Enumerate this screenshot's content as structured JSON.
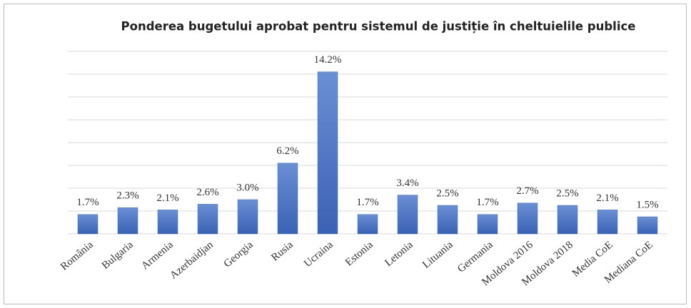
{
  "chart_data": {
    "type": "bar",
    "title": "Ponderea bugetului aprobat pentru sistemul de justiție în cheltuielile publice",
    "categories": [
      "România",
      "Bulgaria",
      "Armenia",
      "Azerbaidjan",
      "Georgia",
      "Rusia",
      "Ucraina",
      "Estonia",
      "Letonia",
      "Lituania",
      "Germania",
      "Moldova 2016",
      "Moldova 2018",
      "Media CoE",
      "Mediana CoE"
    ],
    "values": [
      1.7,
      2.3,
      2.1,
      2.6,
      3.0,
      6.2,
      14.2,
      1.7,
      3.4,
      2.5,
      1.7,
      2.7,
      2.5,
      2.1,
      1.5
    ],
    "value_labels": [
      "1.7%",
      "2.3%",
      "2.1%",
      "2.6%",
      "3.0%",
      "6.2%",
      "14.2%",
      "1.7%",
      "3.4%",
      "2.5%",
      "1.7%",
      "2.7%",
      "2.5%",
      "2.1%",
      "1.5%"
    ],
    "color": "#4472c4",
    "ylim": [
      0,
      16
    ],
    "yticks": [
      0,
      2,
      4,
      6,
      8,
      10,
      12,
      14,
      16
    ],
    "grid": true
  }
}
